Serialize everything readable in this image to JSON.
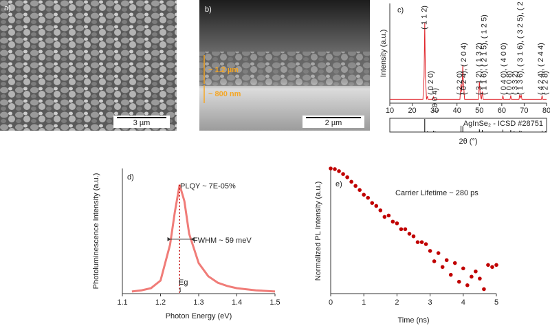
{
  "images": [
    {
      "label": "a)",
      "scale_bar": "3 µm"
    },
    {
      "label": "b)",
      "scale_bar": "2 µm",
      "annotations": [
        "~ 1.2 µm",
        "~ 800 nm"
      ]
    }
  ],
  "chart_data": [
    {
      "type": "line",
      "label": "c)",
      "ylabel": "Intensity (a.u.)",
      "xlabel": "2θ (°)",
      "x": [
        10,
        24.8,
        25.3,
        25.6,
        25.9,
        26.4,
        26.8,
        27.1,
        29.2,
        29.5,
        29.8,
        41.3,
        41.8,
        42.1,
        42.3,
        42.6,
        42.9,
        43.4,
        49.6,
        50,
        50.4,
        50.9,
        51.3,
        51.7,
        60.2,
        60.5,
        60.8,
        63.7,
        64,
        64.3,
        67.7,
        68,
        68.3,
        68.7,
        69,
        77.7,
        78,
        78.3,
        80
      ],
      "series": [
        {
          "color": "#e0262c",
          "values": [
            0,
            0,
            0.3,
            1.0,
            0.3,
            0,
            0.04,
            0,
            0,
            0.03,
            0,
            0,
            0.2,
            0.1,
            0.2,
            0.45,
            0.2,
            0,
            0,
            0.23,
            0.05,
            0,
            0.1,
            0,
            0,
            0.05,
            0,
            0,
            0.05,
            0,
            0,
            0.06,
            0.02,
            0.05,
            0,
            0,
            0.05,
            0,
            0
          ]
        }
      ],
      "xlim": [
        10,
        80
      ],
      "xticks": [
        10,
        20,
        30,
        40,
        50,
        60,
        70,
        80
      ],
      "ylim": [
        -0.05,
        1.25
      ],
      "peak_labels": [
        {
          "text": "( 1 1 2)",
          "x": 25.6
        },
        {
          "text": "( 0 2 0)",
          "x": 28.4
        },
        {
          "text": "( 0 0 4)",
          "x": 30.3
        },
        {
          "text": "( 2 2 0)",
          "x": 41.3
        },
        {
          "text": "( 0 2 4), ( 2 0 4)",
          "x": 43.2
        },
        {
          "text": "( 3 1 2), ( 1 3 2)",
          "x": 50
        },
        {
          "text": "( 1 1 6), ( 2 1 5), ( 1 2 5)",
          "x": 52.2
        },
        {
          "text": "( 0 4 0), ( 4 0 0)",
          "x": 61
        },
        {
          "text": "( 0 0 8)",
          "x": 63.4
        },
        {
          "text": "( 3 3 2)",
          "x": 66
        },
        {
          "text": "( 1 3 6), ( 3 1 6), ( 3 2 5), ( 2 3 5)",
          "x": 68.4
        },
        {
          "text": "( 4 2 4), ( 2 4 4)",
          "x": 77.6
        },
        {
          "text": "( 2 2 8)",
          "x": 79.6
        }
      ],
      "reference": {
        "name": "AgInSe₂ - ICSD #28751",
        "color": "#000000",
        "x": [
          25.6,
          26.8,
          29.5,
          30.2,
          41.8,
          42.6,
          50,
          51.3,
          60.5,
          64,
          65.5,
          68,
          68.7,
          78,
          79.5
        ],
        "values": [
          1.0,
          0.06,
          0.08,
          0.05,
          0.48,
          0.45,
          0.2,
          0.15,
          0.18,
          0.15,
          0.06,
          0.1,
          0.06,
          0.08,
          0.06
        ],
        "ylim": [
          0,
          1.05
        ]
      }
    },
    {
      "type": "line",
      "label": "d)",
      "ylabel": "Photoluminescence Intensity (a.u.)",
      "xlabel": "Photon Energy (eV)",
      "x": [
        1.125,
        1.15,
        1.175,
        1.2,
        1.225,
        1.2375,
        1.25,
        1.2625,
        1.275,
        1.3,
        1.325,
        1.35,
        1.375,
        1.4,
        1.45,
        1.5
      ],
      "series": [
        {
          "color": "#f07c78",
          "values": [
            0.02,
            0.03,
            0.05,
            0.12,
            0.45,
            0.75,
            1.0,
            0.85,
            0.55,
            0.28,
            0.16,
            0.1,
            0.07,
            0.05,
            0.03,
            0.02
          ]
        }
      ],
      "xlim": [
        1.1,
        1.5
      ],
      "xticks": [
        1.1,
        1.2,
        1.3,
        1.4,
        1.5
      ],
      "ylim": [
        0,
        1.15
      ],
      "annotations": [
        "PLQY ~ 7E-05%",
        "FWHM ~ 59 meV",
        "Eg"
      ]
    },
    {
      "type": "scatter",
      "label": "e)",
      "ylabel": "Normalized PL Intensity (a.u.)",
      "xlabel": "Time (ns)",
      "x": [
        0,
        0.125,
        0.25,
        0.375,
        0.5,
        0.625,
        0.75,
        0.875,
        1,
        1.125,
        1.25,
        1.375,
        1.5,
        1.625,
        1.75,
        1.875,
        2,
        2.125,
        2.25,
        2.375,
        2.5,
        2.625,
        2.75,
        2.875,
        3,
        3.125,
        3.25,
        3.375,
        3.5,
        3.625,
        3.75,
        3.875,
        4,
        4.125,
        4.25,
        4.375,
        4.5,
        4.625,
        4.75,
        4.875,
        5
      ],
      "series": [
        {
          "color": "#c00000",
          "values": [
            1.0,
            0.98,
            0.92,
            0.84,
            0.76,
            0.66,
            0.58,
            0.51,
            0.44,
            0.4,
            0.34,
            0.31,
            0.27,
            0.22,
            0.23,
            0.19,
            0.18,
            0.15,
            0.15,
            0.13,
            0.12,
            0.1,
            0.1,
            0.094,
            0.076,
            0.055,
            0.071,
            0.046,
            0.057,
            0.036,
            0.052,
            0.029,
            0.044,
            0.026,
            0.034,
            0.04,
            0.032,
            0.023,
            0.049,
            0.046,
            0.049
          ]
        }
      ],
      "xlim": [
        0,
        5
      ],
      "xticks": [
        0,
        1,
        2,
        3,
        4,
        5
      ],
      "ylim": [
        0.02,
        1
      ],
      "log_y": true,
      "annotations": [
        "Carrier Lifetime ~ 280 ps"
      ]
    }
  ]
}
